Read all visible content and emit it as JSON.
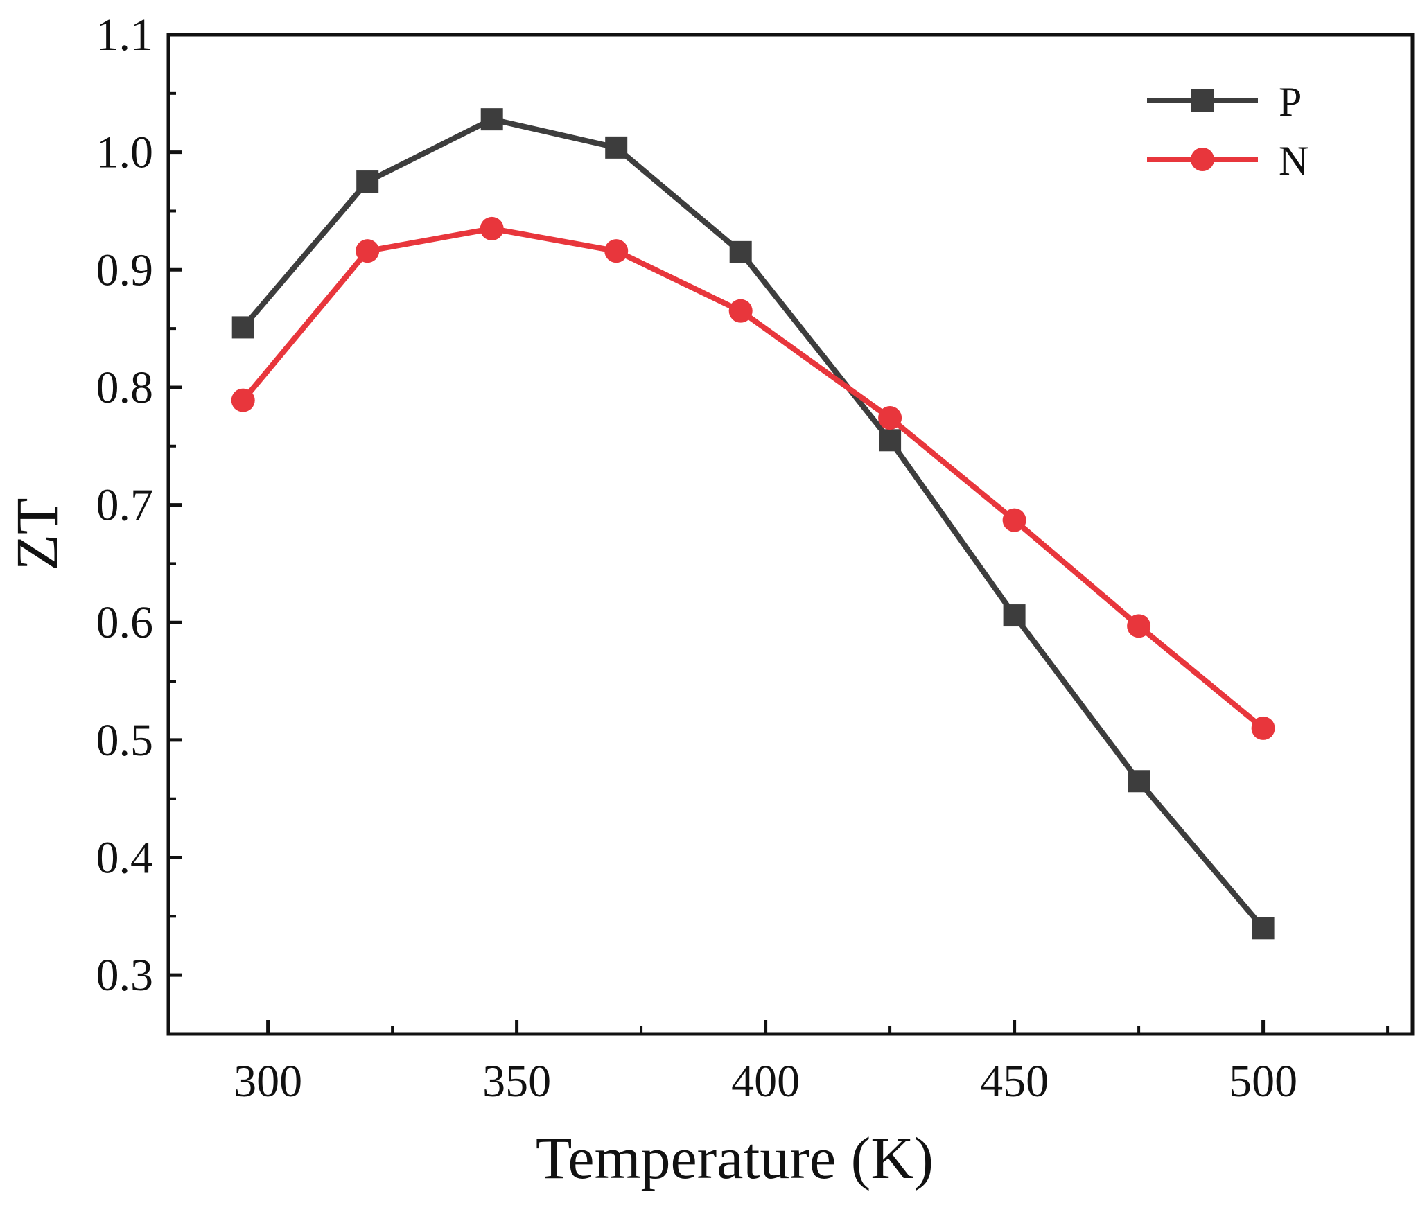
{
  "chart_data": {
    "type": "line",
    "title": "",
    "xlabel": "Temperature (K)",
    "ylabel": "ZT",
    "xlim": [
      280,
      530
    ],
    "ylim": [
      0.25,
      1.1
    ],
    "xticks": [
      300,
      350,
      400,
      450,
      500
    ],
    "xtick_labels": [
      "300",
      "350",
      "400",
      "450",
      "500"
    ],
    "yticks": [
      0.3,
      0.4,
      0.5,
      0.6,
      0.7,
      0.8,
      0.9,
      1.0,
      1.1
    ],
    "ytick_labels": [
      "0.3",
      "0.4",
      "0.5",
      "0.6",
      "0.7",
      "0.8",
      "0.9",
      "1.0",
      "1.1"
    ],
    "grid": false,
    "legend_position": "top-right",
    "x": [
      295,
      320,
      345,
      370,
      395,
      425,
      450,
      475,
      500
    ],
    "series": [
      {
        "name": "P",
        "marker": "square",
        "color": "#3d3d3d",
        "values": [
          0.851,
          0.975,
          1.028,
          1.004,
          0.915,
          0.755,
          0.606,
          0.465,
          0.34
        ]
      },
      {
        "name": "N",
        "marker": "circle",
        "color": "#e8363c",
        "values": [
          0.789,
          0.916,
          0.935,
          0.916,
          0.865,
          0.774,
          0.687,
          0.597,
          0.51
        ]
      }
    ]
  }
}
